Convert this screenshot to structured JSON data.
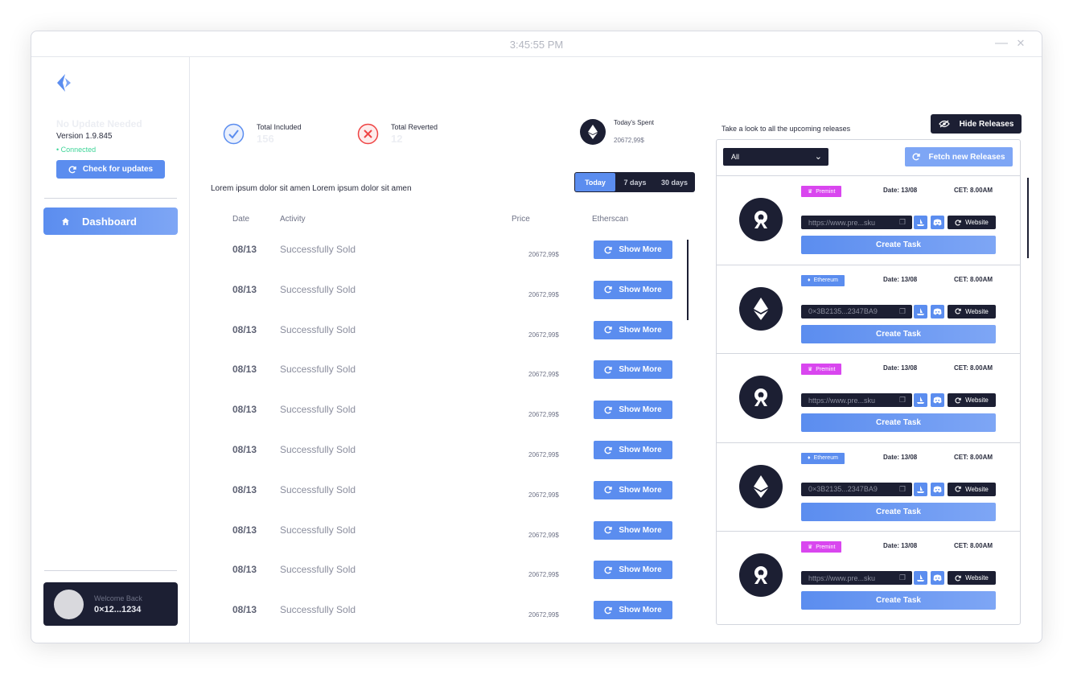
{
  "window": {
    "clock": "3:45:55 PM",
    "minimize": "—",
    "close": "✕"
  },
  "sidebar": {
    "update_title": "No Update Needed",
    "version": "Version 1.9.845",
    "status": "Connected",
    "check_updates": "Check for updates",
    "nav_dashboard": "Dashboard",
    "welcome": "Welcome Back",
    "address": "0×12...1234"
  },
  "stats": {
    "included_label": "Total Included",
    "included_value": "156",
    "reverted_label": "Total Reverted",
    "reverted_value": "12",
    "spent_label": "Today's Spent",
    "spent_value": "20672,99$"
  },
  "activity": {
    "heading": "Lorem ipsum dolor sit amen Lorem ipsum dolor sit amen",
    "tabs": [
      "Today",
      "7 days",
      "30 days"
    ],
    "columns": {
      "date": "Date",
      "activity": "Activity",
      "price": "Price",
      "etherscan": "Etherscan"
    },
    "rows": [
      {
        "date": "08/13",
        "activity": "Successfully Sold",
        "price": "20672,99$",
        "button": "Show More"
      },
      {
        "date": "08/13",
        "activity": "Successfully Sold",
        "price": "20672,99$",
        "button": "Show More"
      },
      {
        "date": "08/13",
        "activity": "Successfully Sold",
        "price": "20672,99$",
        "button": "Show More"
      },
      {
        "date": "08/13",
        "activity": "Successfully Sold",
        "price": "20672,99$",
        "button": "Show More"
      },
      {
        "date": "08/13",
        "activity": "Successfully Sold",
        "price": "20672,99$",
        "button": "Show More"
      },
      {
        "date": "08/13",
        "activity": "Successfully Sold",
        "price": "20672,99$",
        "button": "Show More"
      },
      {
        "date": "08/13",
        "activity": "Successfully Sold",
        "price": "20672,99$",
        "button": "Show More"
      },
      {
        "date": "08/13",
        "activity": "Successfully Sold",
        "price": "20672,99$",
        "button": "Show More"
      },
      {
        "date": "08/13",
        "activity": "Successfully Sold",
        "price": "20672,99$",
        "button": "Show More"
      },
      {
        "date": "08/13",
        "activity": "Successfully Sold",
        "price": "20672,99$",
        "button": "Show More"
      }
    ]
  },
  "releases": {
    "title": "Take a look to all the upcoming releases",
    "hide_button": "Hide Releases",
    "filter_value": "All",
    "fetch_button": "Fetch new Releases",
    "items": [
      {
        "tag": "Premint",
        "tag_color": "#d946ef",
        "coin": "premint",
        "date": "Date: 13/08",
        "cet": "CET: 8.00AM",
        "url": "https://www.pre...sku",
        "website": "Website",
        "create": "Create Task"
      },
      {
        "tag": "Ethereum",
        "tag_color": "#5b8def",
        "coin": "ethereum",
        "date": "Date: 13/08",
        "cet": "CET: 8.00AM",
        "url": "0×3B2135...2347BA9",
        "website": "Website",
        "create": "Create Task"
      },
      {
        "tag": "Premint",
        "tag_color": "#d946ef",
        "coin": "premint",
        "date": "Date: 13/08",
        "cet": "CET: 8.00AM",
        "url": "https://www.pre...sku",
        "website": "Website",
        "create": "Create Task"
      },
      {
        "tag": "Ethereum",
        "tag_color": "#5b8def",
        "coin": "ethereum",
        "date": "Date: 13/08",
        "cet": "CET: 8.00AM",
        "url": "0×3B2135...2347BA9",
        "website": "Website",
        "create": "Create Task"
      },
      {
        "tag": "Premint",
        "tag_color": "#d946ef",
        "coin": "premint",
        "date": "Date: 13/08",
        "cet": "CET: 8.00AM",
        "url": "https://www.pre...sku",
        "website": "Website",
        "create": "Create Task"
      }
    ]
  },
  "colors": {
    "accent": "#5b8def",
    "dark": "#1c1f33",
    "success": "#3ed598",
    "danger": "#ef4444",
    "premint": "#d946ef"
  }
}
